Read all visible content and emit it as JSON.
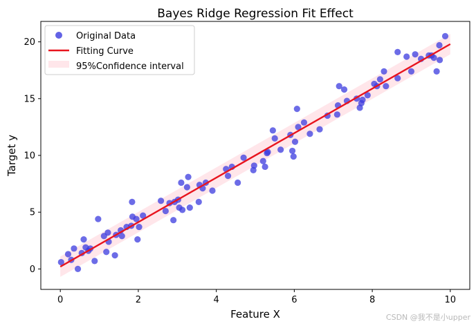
{
  "chart_data": {
    "type": "scatter",
    "title": "Bayes Ridge Regression Fit Effect",
    "xlabel": "Feature X",
    "ylabel": "Target y",
    "xlim": [
      -0.5,
      10.5
    ],
    "ylim": [
      -1.8,
      21.8
    ],
    "xticks": [
      0,
      2,
      4,
      6,
      8,
      10
    ],
    "yticks": [
      0,
      5,
      10,
      15,
      20
    ],
    "grid": false,
    "legend_position": "top-left",
    "fit": {
      "slope": 1.96,
      "intercept": 0.2,
      "ci_halfwidth": 0.9
    },
    "colors": {
      "points": "#3b3bdf",
      "line": "#e8141e",
      "band": "#ffc0cb"
    },
    "series": [
      {
        "name": "Original Data",
        "kind": "scatter",
        "points": [
          [
            0.02,
            0.6
          ],
          [
            0.2,
            1.3
          ],
          [
            0.28,
            0.8
          ],
          [
            0.35,
            1.8
          ],
          [
            0.45,
            0.0
          ],
          [
            0.55,
            1.4
          ],
          [
            0.6,
            2.6
          ],
          [
            0.65,
            1.9
          ],
          [
            0.72,
            1.6
          ],
          [
            0.77,
            1.8
          ],
          [
            0.88,
            0.7
          ],
          [
            0.97,
            4.4
          ],
          [
            1.12,
            2.9
          ],
          [
            1.18,
            1.5
          ],
          [
            1.22,
            3.2
          ],
          [
            1.24,
            2.4
          ],
          [
            1.4,
            1.2
          ],
          [
            1.43,
            3.0
          ],
          [
            1.55,
            3.4
          ],
          [
            1.58,
            2.9
          ],
          [
            1.7,
            3.7
          ],
          [
            1.82,
            3.8
          ],
          [
            1.84,
            5.9
          ],
          [
            1.85,
            4.6
          ],
          [
            1.95,
            4.4
          ],
          [
            1.98,
            2.6
          ],
          [
            2.02,
            3.7
          ],
          [
            2.12,
            4.7
          ],
          [
            2.58,
            6.0
          ],
          [
            2.7,
            5.1
          ],
          [
            2.8,
            5.8
          ],
          [
            2.9,
            4.3
          ],
          [
            2.93,
            5.9
          ],
          [
            3.02,
            6.1
          ],
          [
            3.05,
            5.4
          ],
          [
            3.1,
            7.6
          ],
          [
            3.13,
            5.2
          ],
          [
            3.25,
            7.2
          ],
          [
            3.28,
            8.1
          ],
          [
            3.32,
            5.4
          ],
          [
            3.55,
            5.9
          ],
          [
            3.57,
            7.4
          ],
          [
            3.65,
            7.1
          ],
          [
            3.73,
            7.6
          ],
          [
            3.9,
            6.9
          ],
          [
            4.25,
            8.8
          ],
          [
            4.3,
            8.2
          ],
          [
            4.4,
            9.0
          ],
          [
            4.55,
            7.6
          ],
          [
            4.7,
            9.8
          ],
          [
            4.95,
            8.7
          ],
          [
            4.97,
            9.1
          ],
          [
            5.2,
            9.5
          ],
          [
            5.25,
            9.0
          ],
          [
            5.3,
            10.2
          ],
          [
            5.32,
            10.3
          ],
          [
            5.45,
            12.2
          ],
          [
            5.5,
            11.5
          ],
          [
            5.65,
            10.5
          ],
          [
            5.9,
            11.8
          ],
          [
            5.95,
            10.4
          ],
          [
            5.98,
            9.9
          ],
          [
            6.02,
            11.2
          ],
          [
            6.07,
            14.1
          ],
          [
            6.1,
            12.5
          ],
          [
            6.25,
            12.9
          ],
          [
            6.4,
            11.9
          ],
          [
            6.65,
            12.3
          ],
          [
            6.85,
            13.5
          ],
          [
            7.1,
            13.6
          ],
          [
            7.12,
            14.4
          ],
          [
            7.15,
            16.1
          ],
          [
            7.28,
            15.8
          ],
          [
            7.35,
            14.8
          ],
          [
            7.6,
            15.0
          ],
          [
            7.68,
            14.2
          ],
          [
            7.72,
            14.6
          ],
          [
            7.75,
            14.9
          ],
          [
            7.88,
            15.3
          ],
          [
            8.05,
            16.3
          ],
          [
            8.12,
            16.1
          ],
          [
            8.2,
            16.7
          ],
          [
            8.3,
            17.4
          ],
          [
            8.35,
            16.1
          ],
          [
            8.65,
            19.1
          ],
          [
            8.65,
            16.8
          ],
          [
            8.88,
            18.7
          ],
          [
            9.0,
            17.4
          ],
          [
            9.1,
            18.9
          ],
          [
            9.25,
            18.5
          ],
          [
            9.45,
            18.8
          ],
          [
            9.52,
            18.8
          ],
          [
            9.58,
            18.6
          ],
          [
            9.65,
            17.4
          ],
          [
            9.72,
            19.7
          ],
          [
            9.73,
            18.4
          ],
          [
            9.87,
            20.5
          ]
        ]
      },
      {
        "name": "Fitting Curve",
        "kind": "line"
      },
      {
        "name": "95%Confidence interval",
        "kind": "band"
      }
    ]
  },
  "watermark": "CSDN @我不是小upper"
}
